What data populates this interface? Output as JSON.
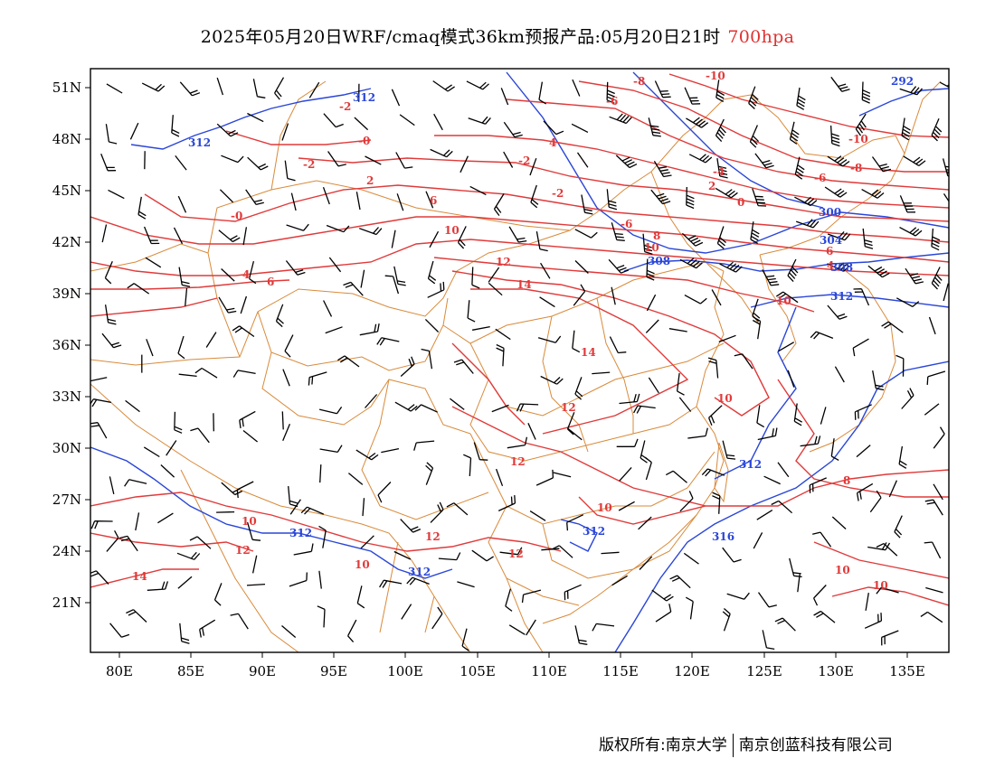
{
  "title": {
    "main": "2025年05月20日WRF/cmaq模式36km预报产品:05月20日21时",
    "level": "700hpa"
  },
  "colors": {
    "temperature": "#e03a3a",
    "height": "#2a46d8",
    "boundary": "#d98a3a",
    "wind": "#000000"
  },
  "axes": {
    "lat_labels": [
      "51N",
      "48N",
      "45N",
      "42N",
      "39N",
      "36N",
      "33N",
      "30N",
      "27N",
      "24N",
      "21N"
    ],
    "lon_labels": [
      "80E",
      "85E",
      "90E",
      "95E",
      "100E",
      "105E",
      "110E",
      "115E",
      "120E",
      "125E",
      "130E",
      "135E"
    ]
  },
  "temp_labels": [
    "-2",
    "-2",
    "-0",
    "-0",
    "-6",
    "4",
    "-8",
    "-10",
    "-10",
    "-6",
    "-2",
    "-4",
    "-2",
    "-8",
    "6",
    "2",
    "0",
    "-6",
    "2",
    "6",
    "4",
    "10",
    "8",
    "10",
    "12",
    "14",
    "6",
    "4",
    "12",
    "14",
    "10",
    "10",
    "12",
    "12",
    "10",
    "14",
    "12",
    "10",
    "12",
    "10",
    "8",
    "10",
    "10"
  ],
  "height_labels": [
    "312",
    "312",
    "292",
    "300",
    "304",
    "308",
    "308",
    "312",
    "312",
    "312",
    "312",
    "312",
    "316"
  ],
  "copyright": {
    "left": "版权所有:南京大学",
    "right": "南京创蓝科技有限公司"
  }
}
